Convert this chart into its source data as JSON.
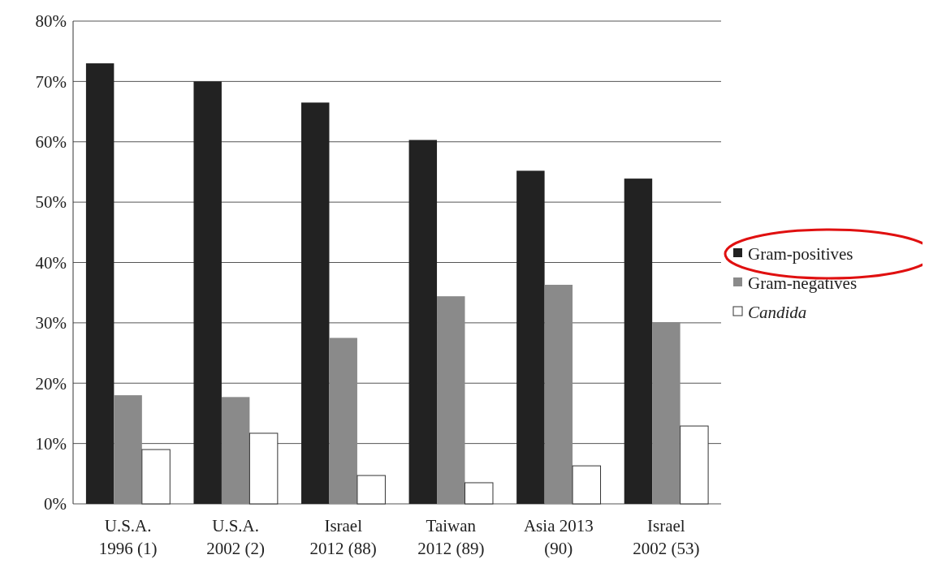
{
  "chart_data": {
    "type": "bar",
    "categories": [
      "U.S.A.\n1996 (1)",
      "U.S.A.\n2002 (2)",
      "Israel\n2012 (88)",
      "Taiwan\n2012 (89)",
      "Asia 2013\n(90)",
      "Israel\n2002 (53)"
    ],
    "series": [
      {
        "name": "Gram-positives",
        "color": "#222222",
        "values": [
          73,
          70,
          66.5,
          60.3,
          55.2,
          53.9
        ]
      },
      {
        "name": "Gram-negatives",
        "color": "#8a8a8a",
        "values": [
          18,
          17.7,
          27.5,
          34.4,
          36.3,
          30.1
        ]
      },
      {
        "name": "Candida",
        "color": "#ffffff",
        "values": [
          9,
          11.7,
          4.7,
          3.5,
          6.3,
          12.9
        ]
      }
    ],
    "ylim": [
      0,
      80
    ],
    "yticks": [
      {
        "value": 0,
        "label": "0%"
      },
      {
        "value": 10,
        "label": "10%"
      },
      {
        "value": 20,
        "label": "20%"
      },
      {
        "value": 30,
        "label": "30%"
      },
      {
        "value": 40,
        "label": "40%"
      },
      {
        "value": 50,
        "label": "50%"
      },
      {
        "value": 60,
        "label": "60%"
      },
      {
        "value": 70,
        "label": "70%"
      },
      {
        "value": 80,
        "label": "80%"
      }
    ],
    "grid": "y",
    "legend": "right"
  }
}
